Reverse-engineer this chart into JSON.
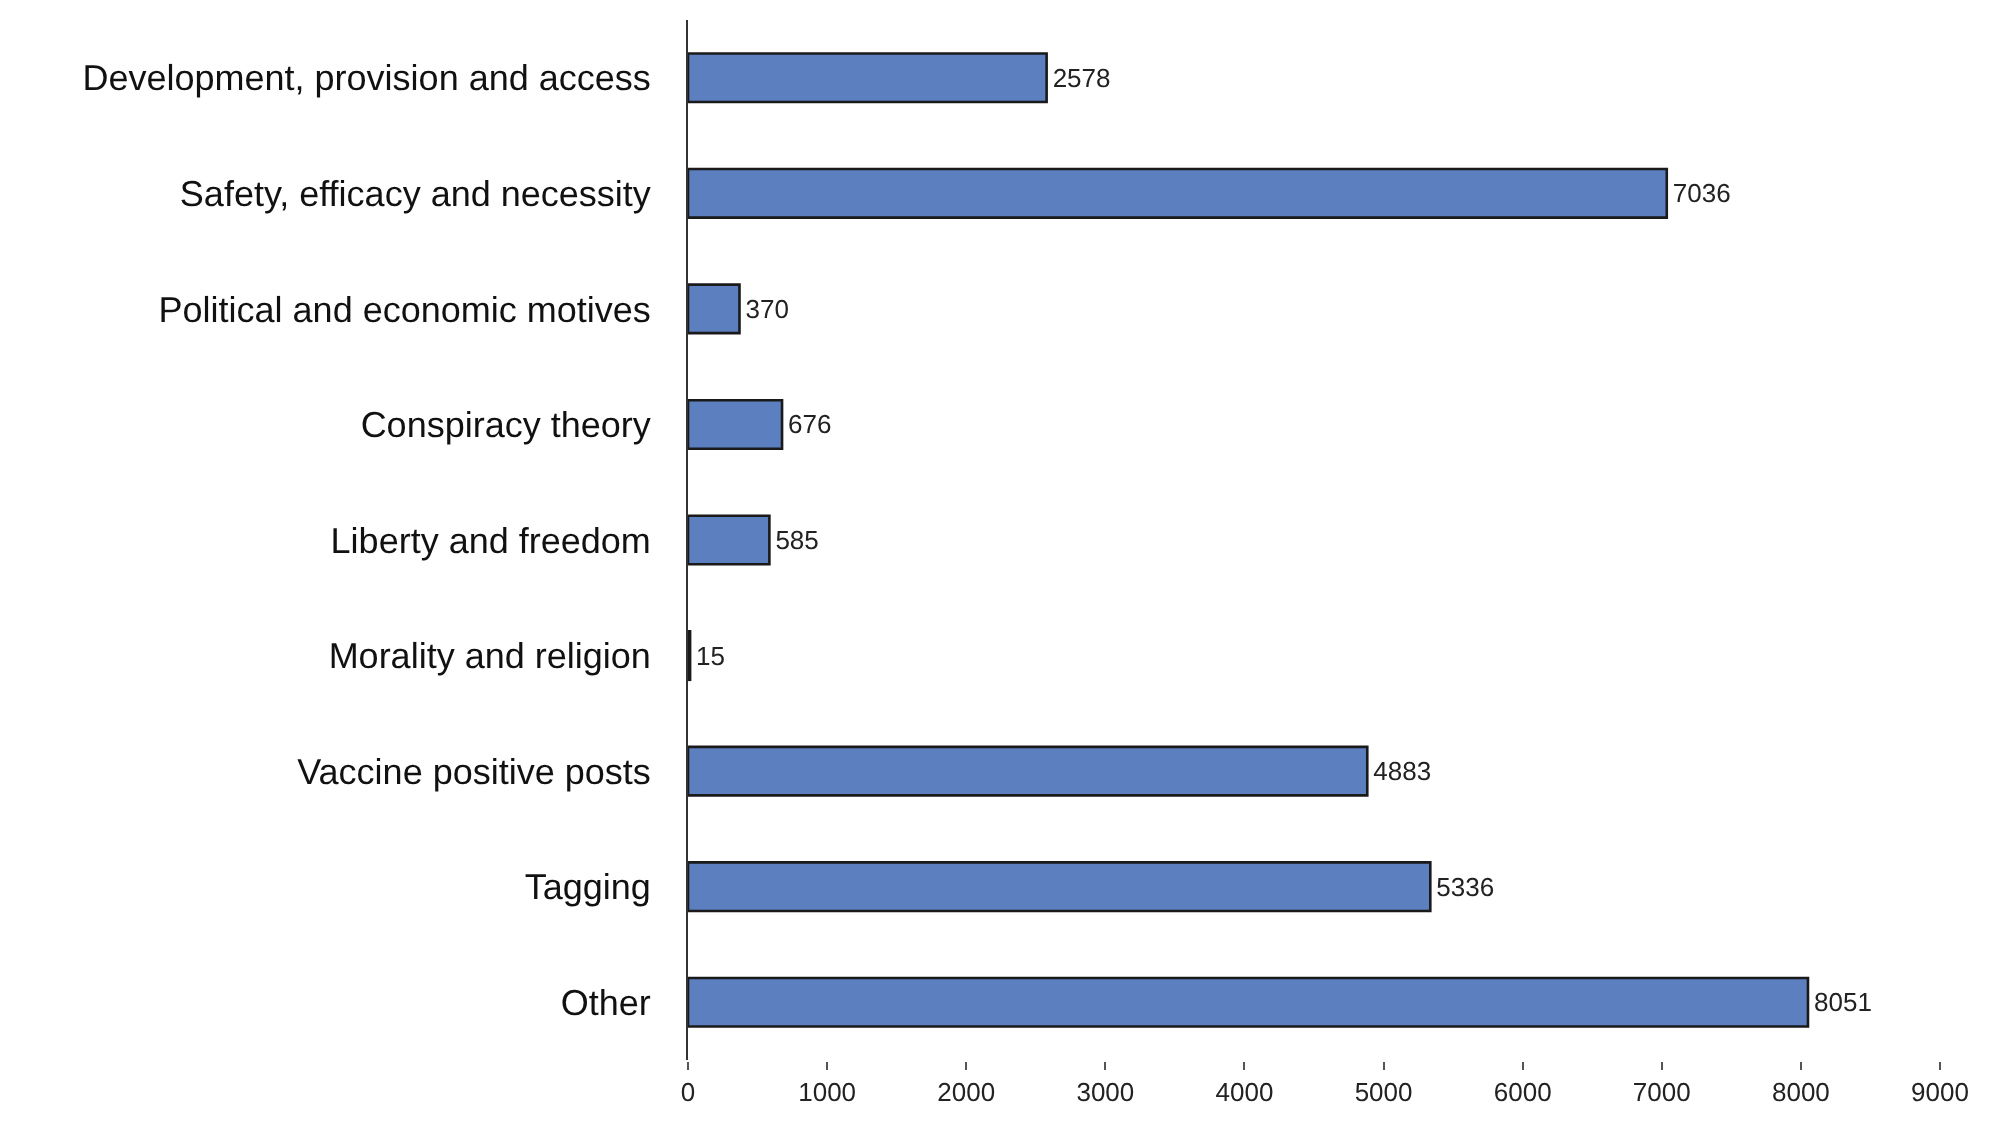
{
  "chart_data": {
    "type": "bar",
    "orientation": "horizontal",
    "categories": [
      "Development, provision and access",
      "Safety, efficacy and necessity",
      "Political and economic motives",
      "Conspiracy theory",
      "Liberty and freedom",
      "Morality and religion",
      "Vaccine positive posts",
      "Tagging",
      "Other"
    ],
    "values": [
      2578,
      7036,
      370,
      676,
      585,
      15,
      4883,
      5336,
      8051
    ],
    "color": "#5b7fbf",
    "xlim": [
      0,
      9000
    ],
    "xticks": [
      0,
      1000,
      2000,
      3000,
      4000,
      5000,
      6000,
      7000,
      8000,
      9000
    ],
    "data_labels": true
  }
}
